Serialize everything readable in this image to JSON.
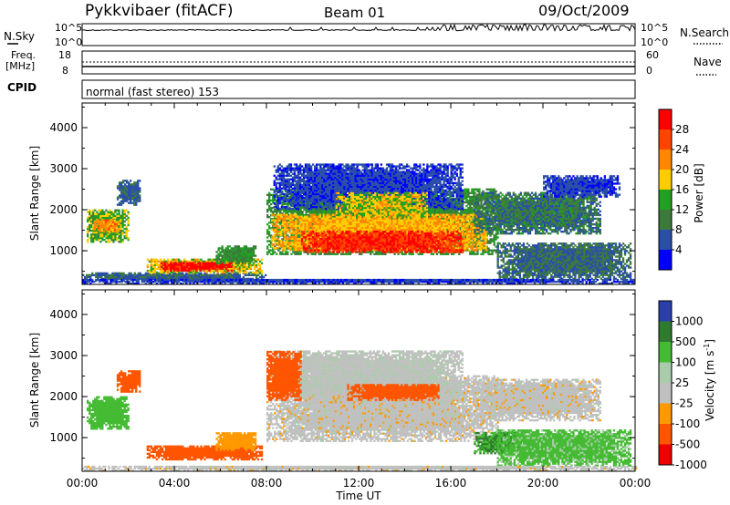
{
  "header": {
    "station": "Pykkvibaer (fitACF)",
    "beam": "Beam 01",
    "date": "09/Oct/2009"
  },
  "noise_panel": {
    "left_label": "N.Sky",
    "right_label": "N.Search",
    "left_ticks": [
      "10^5",
      "10^0"
    ],
    "right_ticks": [
      "10^5",
      "10^0"
    ]
  },
  "freq_panel": {
    "left_label_1": "Freq.",
    "left_label_2": "[MHz]",
    "left_ticks": [
      "18",
      "8"
    ],
    "right_label": "Nave",
    "right_ticks": [
      "60",
      "0"
    ]
  },
  "cpid_panel": {
    "label": "CPID",
    "text": "normal (fast stereo) 153"
  },
  "chart_data": [
    {
      "type": "heatmap",
      "panel": "power",
      "ylabel": "Slant Range [km]",
      "xlabel": "",
      "ylim": [
        180,
        4600
      ],
      "y_ticks": [
        "1000",
        "2000",
        "3000",
        "4000"
      ],
      "colorbar_label": "Power [dB]",
      "colorbar_ticks": [
        "28",
        "24",
        "20",
        "16",
        "12",
        "8",
        "4"
      ],
      "colorbar_colors": [
        "#ff0000",
        "#ff4400",
        "#ff8800",
        "#ffcc00",
        "#22a022",
        "#3c7a3c",
        "#2a4fa8",
        "#0000ff"
      ],
      "regions": [
        {
          "t0": 0.2,
          "t1": 2.0,
          "r0": 1200,
          "r1": 2000,
          "value": 14
        },
        {
          "t0": 0.5,
          "t1": 1.6,
          "r0": 1450,
          "r1": 1750,
          "value": 20
        },
        {
          "t0": 1.5,
          "t1": 2.5,
          "r0": 2100,
          "r1": 2700,
          "value": 8
        },
        {
          "t0": 0.0,
          "t1": 8.0,
          "r0": 250,
          "r1": 450,
          "value": 8
        },
        {
          "t0": 2.8,
          "t1": 7.8,
          "r0": 450,
          "r1": 800,
          "value": 16
        },
        {
          "t0": 3.4,
          "t1": 6.5,
          "r0": 500,
          "r1": 720,
          "value": 28
        },
        {
          "t0": 5.8,
          "t1": 7.5,
          "r0": 680,
          "r1": 1100,
          "value": 12
        },
        {
          "t0": 8.0,
          "t1": 18.0,
          "r0": 900,
          "r1": 2500,
          "value": 12
        },
        {
          "t0": 8.2,
          "t1": 17.5,
          "r0": 1000,
          "r1": 1900,
          "value": 18
        },
        {
          "t0": 9.5,
          "t1": 16.5,
          "r0": 950,
          "r1": 1450,
          "value": 26
        },
        {
          "t0": 8.3,
          "t1": 16.5,
          "r0": 2000,
          "r1": 3100,
          "value": 6
        },
        {
          "t0": 11.0,
          "t1": 15.0,
          "r0": 1800,
          "r1": 2400,
          "value": 16
        },
        {
          "t0": 17.0,
          "t1": 22.5,
          "r0": 1400,
          "r1": 2400,
          "value": 10
        },
        {
          "t0": 20.0,
          "t1": 23.3,
          "r0": 2300,
          "r1": 2800,
          "value": 6
        },
        {
          "t0": 18.0,
          "t1": 23.8,
          "r0": 300,
          "r1": 1200,
          "value": 9
        },
        {
          "t0": 0.0,
          "t1": 24.0,
          "r0": 180,
          "r1": 300,
          "value": 6
        }
      ]
    },
    {
      "type": "heatmap",
      "panel": "velocity",
      "ylabel": "Slant Range [km]",
      "xlabel": "Time UT",
      "xlim": [
        0,
        24
      ],
      "ylim": [
        180,
        4600
      ],
      "x_ticks": [
        "00:00",
        "04:00",
        "08:00",
        "12:00",
        "16:00",
        "20:00",
        "00:00"
      ],
      "y_ticks": [
        "1000",
        "2000",
        "3000",
        "4000"
      ],
      "colorbar_label": "Velocity [m s",
      "colorbar_label_sup": "-1",
      "colorbar_label_end": "]",
      "colorbar_ticks": [
        "1000",
        "500",
        "100",
        "25",
        "-25",
        "-100",
        "-500",
        "-1000"
      ],
      "colorbar_colors": [
        "#2a3faa",
        "#2e7a2e",
        "#44bb33",
        "#aaccaa",
        "#c0c0c0",
        "#ff9900",
        "#ff5500",
        "#ee0000"
      ],
      "regions": [
        {
          "t0": 0.2,
          "t1": 2.0,
          "r0": 1200,
          "r1": 2000,
          "value": 200
        },
        {
          "t0": 1.5,
          "t1": 2.5,
          "r0": 2100,
          "r1": 2600,
          "value": -150
        },
        {
          "t0": 2.8,
          "t1": 7.8,
          "r0": 450,
          "r1": 800,
          "value": -200
        },
        {
          "t0": 5.8,
          "t1": 7.5,
          "r0": 680,
          "r1": 1100,
          "value": -60
        },
        {
          "t0": 8.0,
          "t1": 18.0,
          "r0": 900,
          "r1": 2500,
          "value": 0
        },
        {
          "t0": 8.3,
          "t1": 16.5,
          "r0": 2000,
          "r1": 3100,
          "value": 10
        },
        {
          "t0": 8.0,
          "t1": 9.5,
          "r0": 1900,
          "r1": 3100,
          "value": -150
        },
        {
          "t0": 11.5,
          "t1": 15.5,
          "r0": 1900,
          "r1": 2300,
          "value": -150
        },
        {
          "t0": 17.0,
          "t1": 22.5,
          "r0": 1400,
          "r1": 2400,
          "value": 0
        },
        {
          "t0": 17.0,
          "t1": 19.0,
          "r0": 600,
          "r1": 1100,
          "value": 300
        },
        {
          "t0": 18.0,
          "t1": 23.8,
          "r0": 300,
          "r1": 1200,
          "value": 80
        },
        {
          "t0": 0.0,
          "t1": 24.0,
          "r0": 180,
          "r1": 300,
          "value": 0
        }
      ]
    }
  ]
}
